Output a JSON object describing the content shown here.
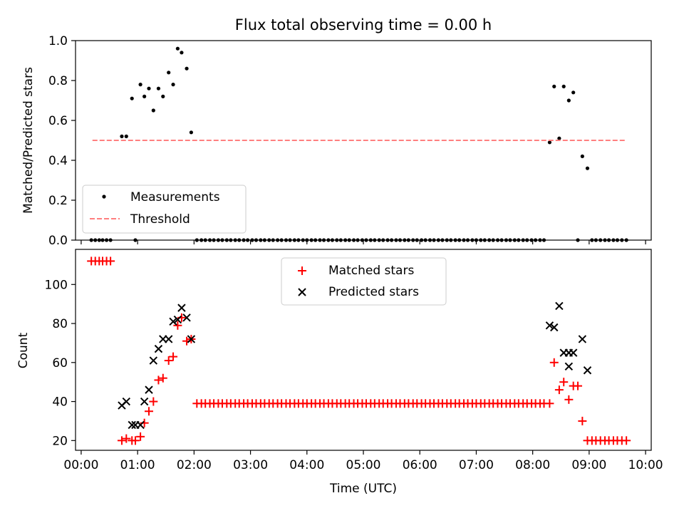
{
  "title": "Flux total observing time = 0.00 h",
  "x_ticks": [
    "00:00",
    "01:00",
    "02:00",
    "03:00",
    "04:00",
    "05:00",
    "06:00",
    "07:00",
    "08:00",
    "09:00",
    "10:00"
  ],
  "xlabel": "Time (UTC)",
  "chart_data": [
    {
      "type": "scatter",
      "title": "Flux total observing time = 0.00 h",
      "xlabel": "",
      "ylabel": "Matched/Predicted stars",
      "x_unit": "hours",
      "xlim": [
        -0.1,
        10.1
      ],
      "ylim": [
        0,
        1.0
      ],
      "y_ticks": [
        "0.0",
        "0.2",
        "0.4",
        "0.6",
        "0.8",
        "1.0"
      ],
      "legend": {
        "position": "lower left",
        "entries": [
          "Measurements",
          "Threshold"
        ]
      },
      "series": [
        {
          "name": "Measurements",
          "marker": "dot",
          "color": "#000000",
          "points": [
            [
              0.18,
              0
            ],
            [
              0.25,
              0
            ],
            [
              0.32,
              0
            ],
            [
              0.38,
              0
            ],
            [
              0.45,
              0
            ],
            [
              0.52,
              0
            ],
            [
              0.72,
              0.52
            ],
            [
              0.8,
              0.52
            ],
            [
              0.9,
              0.71
            ],
            [
              0.96,
              0
            ],
            [
              1.05,
              0.78
            ],
            [
              1.12,
              0.72
            ],
            [
              1.2,
              0.76
            ],
            [
              1.28,
              0.65
            ],
            [
              1.37,
              0.76
            ],
            [
              1.45,
              0.72
            ],
            [
              1.55,
              0.84
            ],
            [
              1.63,
              0.78
            ],
            [
              1.71,
              0.96
            ],
            [
              1.78,
              0.94
            ],
            [
              1.87,
              0.86
            ],
            [
              1.95,
              0.54
            ],
            [
              2.05,
              0
            ],
            [
              2.13,
              0
            ],
            [
              2.2,
              0
            ],
            [
              2.28,
              0
            ],
            [
              2.35,
              0
            ],
            [
              2.43,
              0
            ],
            [
              2.5,
              0
            ],
            [
              2.58,
              0
            ],
            [
              2.65,
              0
            ],
            [
              2.73,
              0
            ],
            [
              2.8,
              0
            ],
            [
              2.88,
              0
            ],
            [
              2.95,
              0
            ],
            [
              3.03,
              0
            ],
            [
              3.1,
              0
            ],
            [
              3.18,
              0
            ],
            [
              3.25,
              0
            ],
            [
              3.33,
              0
            ],
            [
              3.4,
              0
            ],
            [
              3.48,
              0
            ],
            [
              3.55,
              0
            ],
            [
              3.63,
              0
            ],
            [
              3.7,
              0
            ],
            [
              3.78,
              0
            ],
            [
              3.85,
              0
            ],
            [
              3.93,
              0
            ],
            [
              4.0,
              0
            ],
            [
              4.08,
              0
            ],
            [
              4.15,
              0
            ],
            [
              4.23,
              0
            ],
            [
              4.3,
              0
            ],
            [
              4.38,
              0
            ],
            [
              4.45,
              0
            ],
            [
              4.53,
              0
            ],
            [
              4.6,
              0
            ],
            [
              4.68,
              0
            ],
            [
              4.75,
              0
            ],
            [
              4.83,
              0
            ],
            [
              4.9,
              0
            ],
            [
              4.98,
              0
            ],
            [
              5.05,
              0
            ],
            [
              5.13,
              0
            ],
            [
              5.2,
              0
            ],
            [
              5.28,
              0
            ],
            [
              5.35,
              0
            ],
            [
              5.43,
              0
            ],
            [
              5.5,
              0
            ],
            [
              5.58,
              0
            ],
            [
              5.65,
              0
            ],
            [
              5.73,
              0
            ],
            [
              5.8,
              0
            ],
            [
              5.88,
              0
            ],
            [
              5.95,
              0
            ],
            [
              6.03,
              0
            ],
            [
              6.1,
              0
            ],
            [
              6.18,
              0
            ],
            [
              6.25,
              0
            ],
            [
              6.33,
              0
            ],
            [
              6.4,
              0
            ],
            [
              6.48,
              0
            ],
            [
              6.55,
              0
            ],
            [
              6.63,
              0
            ],
            [
              6.7,
              0
            ],
            [
              6.78,
              0
            ],
            [
              6.85,
              0
            ],
            [
              6.93,
              0
            ],
            [
              7.0,
              0
            ],
            [
              7.08,
              0
            ],
            [
              7.15,
              0
            ],
            [
              7.23,
              0
            ],
            [
              7.3,
              0
            ],
            [
              7.38,
              0
            ],
            [
              7.45,
              0
            ],
            [
              7.53,
              0
            ],
            [
              7.6,
              0
            ],
            [
              7.68,
              0
            ],
            [
              7.75,
              0
            ],
            [
              7.83,
              0
            ],
            [
              7.9,
              0
            ],
            [
              7.98,
              0
            ],
            [
              8.05,
              0
            ],
            [
              8.13,
              0
            ],
            [
              8.2,
              0
            ],
            [
              8.3,
              0.49
            ],
            [
              8.38,
              0.77
            ],
            [
              8.47,
              0.51
            ],
            [
              8.55,
              0.77
            ],
            [
              8.64,
              0.7
            ],
            [
              8.72,
              0.74
            ],
            [
              8.8,
              0
            ],
            [
              8.88,
              0.42
            ],
            [
              8.97,
              0.36
            ],
            [
              9.05,
              0
            ],
            [
              9.12,
              0
            ],
            [
              9.2,
              0
            ],
            [
              9.28,
              0
            ],
            [
              9.35,
              0
            ],
            [
              9.43,
              0
            ],
            [
              9.5,
              0
            ],
            [
              9.58,
              0
            ],
            [
              9.66,
              0
            ]
          ]
        },
        {
          "name": "Threshold",
          "line_style": "dashed",
          "color": "#ff7f7f",
          "points": [
            [
              0.2,
              0.5
            ],
            [
              9.65,
              0.5
            ]
          ]
        }
      ]
    },
    {
      "type": "scatter",
      "xlabel": "Time (UTC)",
      "ylabel": "Count",
      "x_unit": "hours",
      "xlim": [
        -0.1,
        10.1
      ],
      "ylim": [
        15,
        118
      ],
      "y_ticks": [
        "20",
        "40",
        "60",
        "80",
        "100"
      ],
      "legend": {
        "position": "upper center",
        "entries": [
          "Matched stars",
          "Predicted stars"
        ]
      },
      "series": [
        {
          "name": "Matched stars",
          "marker": "plus",
          "color": "#ff0000",
          "points": [
            [
              0.18,
              112
            ],
            [
              0.25,
              112
            ],
            [
              0.32,
              112
            ],
            [
              0.38,
              112
            ],
            [
              0.45,
              112
            ],
            [
              0.52,
              112
            ],
            [
              0.72,
              20
            ],
            [
              0.8,
              21
            ],
            [
              0.9,
              20
            ],
            [
              0.96,
              20
            ],
            [
              1.05,
              22
            ],
            [
              1.12,
              29
            ],
            [
              1.2,
              35
            ],
            [
              1.28,
              40
            ],
            [
              1.37,
              51
            ],
            [
              1.45,
              52
            ],
            [
              1.55,
              61
            ],
            [
              1.63,
              63
            ],
            [
              1.71,
              79
            ],
            [
              1.78,
              83
            ],
            [
              1.87,
              71
            ],
            [
              1.95,
              72
            ],
            [
              2.05,
              39
            ],
            [
              2.13,
              39
            ],
            [
              2.2,
              39
            ],
            [
              2.28,
              39
            ],
            [
              2.35,
              39
            ],
            [
              2.43,
              39
            ],
            [
              2.5,
              39
            ],
            [
              2.58,
              39
            ],
            [
              2.65,
              39
            ],
            [
              2.73,
              39
            ],
            [
              2.8,
              39
            ],
            [
              2.88,
              39
            ],
            [
              2.95,
              39
            ],
            [
              3.03,
              39
            ],
            [
              3.1,
              39
            ],
            [
              3.18,
              39
            ],
            [
              3.25,
              39
            ],
            [
              3.33,
              39
            ],
            [
              3.4,
              39
            ],
            [
              3.48,
              39
            ],
            [
              3.55,
              39
            ],
            [
              3.63,
              39
            ],
            [
              3.7,
              39
            ],
            [
              3.78,
              39
            ],
            [
              3.85,
              39
            ],
            [
              3.93,
              39
            ],
            [
              4.0,
              39
            ],
            [
              4.08,
              39
            ],
            [
              4.15,
              39
            ],
            [
              4.23,
              39
            ],
            [
              4.3,
              39
            ],
            [
              4.38,
              39
            ],
            [
              4.45,
              39
            ],
            [
              4.53,
              39
            ],
            [
              4.6,
              39
            ],
            [
              4.68,
              39
            ],
            [
              4.75,
              39
            ],
            [
              4.83,
              39
            ],
            [
              4.9,
              39
            ],
            [
              4.98,
              39
            ],
            [
              5.05,
              39
            ],
            [
              5.13,
              39
            ],
            [
              5.2,
              39
            ],
            [
              5.28,
              39
            ],
            [
              5.35,
              39
            ],
            [
              5.43,
              39
            ],
            [
              5.5,
              39
            ],
            [
              5.58,
              39
            ],
            [
              5.65,
              39
            ],
            [
              5.73,
              39
            ],
            [
              5.8,
              39
            ],
            [
              5.88,
              39
            ],
            [
              5.95,
              39
            ],
            [
              6.03,
              39
            ],
            [
              6.1,
              39
            ],
            [
              6.18,
              39
            ],
            [
              6.25,
              39
            ],
            [
              6.33,
              39
            ],
            [
              6.4,
              39
            ],
            [
              6.48,
              39
            ],
            [
              6.55,
              39
            ],
            [
              6.63,
              39
            ],
            [
              6.7,
              39
            ],
            [
              6.78,
              39
            ],
            [
              6.85,
              39
            ],
            [
              6.93,
              39
            ],
            [
              7.0,
              39
            ],
            [
              7.08,
              39
            ],
            [
              7.15,
              39
            ],
            [
              7.23,
              39
            ],
            [
              7.3,
              39
            ],
            [
              7.38,
              39
            ],
            [
              7.45,
              39
            ],
            [
              7.53,
              39
            ],
            [
              7.6,
              39
            ],
            [
              7.68,
              39
            ],
            [
              7.75,
              39
            ],
            [
              7.83,
              39
            ],
            [
              7.9,
              39
            ],
            [
              7.98,
              39
            ],
            [
              8.05,
              39
            ],
            [
              8.13,
              39
            ],
            [
              8.2,
              39
            ],
            [
              8.3,
              39
            ],
            [
              8.38,
              60
            ],
            [
              8.47,
              46
            ],
            [
              8.55,
              50
            ],
            [
              8.64,
              41
            ],
            [
              8.72,
              48
            ],
            [
              8.8,
              48
            ],
            [
              8.88,
              30
            ],
            [
              8.97,
              20
            ],
            [
              9.05,
              20
            ],
            [
              9.12,
              20
            ],
            [
              9.2,
              20
            ],
            [
              9.28,
              20
            ],
            [
              9.35,
              20
            ],
            [
              9.43,
              20
            ],
            [
              9.5,
              20
            ],
            [
              9.58,
              20
            ],
            [
              9.66,
              20
            ]
          ]
        },
        {
          "name": "Predicted stars",
          "marker": "x",
          "color": "#000000",
          "points": [
            [
              0.72,
              38
            ],
            [
              0.8,
              40
            ],
            [
              0.9,
              28
            ],
            [
              0.96,
              28
            ],
            [
              1.05,
              28
            ],
            [
              1.12,
              40
            ],
            [
              1.2,
              46
            ],
            [
              1.28,
              61
            ],
            [
              1.37,
              67
            ],
            [
              1.45,
              72
            ],
            [
              1.55,
              72
            ],
            [
              1.63,
              81
            ],
            [
              1.71,
              82
            ],
            [
              1.78,
              88
            ],
            [
              1.87,
              83
            ],
            [
              1.95,
              72
            ],
            [
              8.3,
              79
            ],
            [
              8.38,
              78
            ],
            [
              8.47,
              89
            ],
            [
              8.55,
              65
            ],
            [
              8.64,
              58
            ],
            [
              8.64,
              65
            ],
            [
              8.72,
              65
            ],
            [
              8.88,
              72
            ],
            [
              8.97,
              56
            ]
          ]
        }
      ]
    }
  ]
}
